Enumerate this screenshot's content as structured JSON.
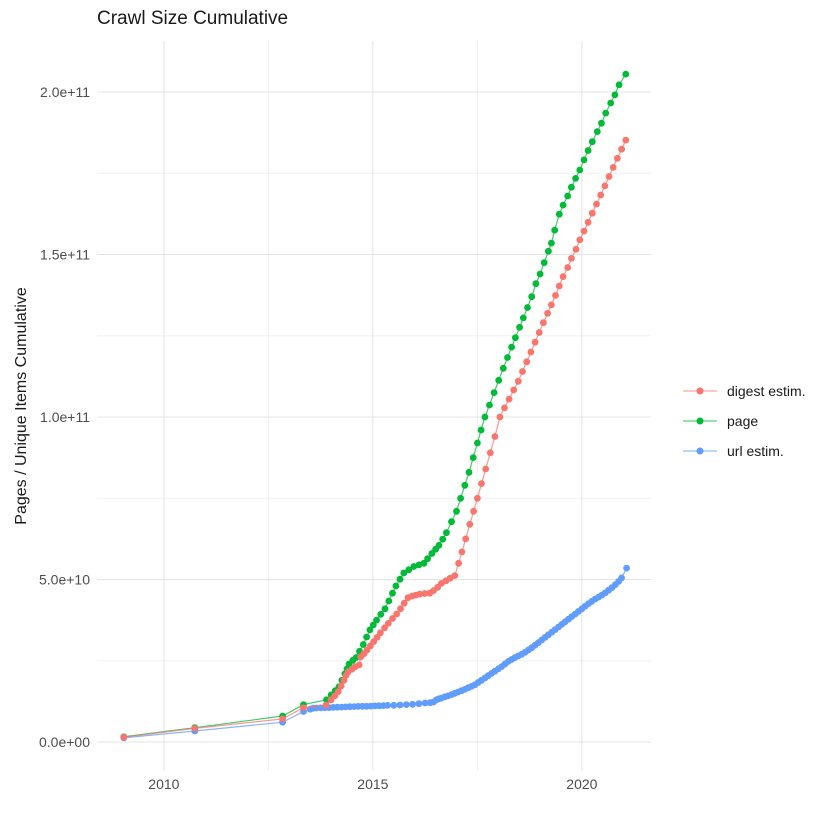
{
  "chart_data": {
    "type": "line",
    "title": "Crawl Size Cumulative",
    "xlabel": "",
    "ylabel": "Pages / Unique Items Cumulative",
    "grid": "on",
    "legend_position": "right",
    "value_scale_note": "point values stored in billions (1e9) of pages / unique items",
    "x_axis": {
      "lim": [
        2008.4,
        2021.654
      ],
      "ticks": [
        {
          "v": 2010,
          "label": "2010"
        },
        {
          "v": 2015,
          "label": "2015"
        },
        {
          "v": 2020,
          "label": "2020"
        }
      ],
      "minor": [
        2012.5,
        2017.5
      ]
    },
    "y_axis": {
      "lim": [
        -8.92,
        215.69
      ],
      "ticks": [
        {
          "v": 0,
          "label": "0.0e+00"
        },
        {
          "v": 50,
          "label": "5.0e+10"
        },
        {
          "v": 100,
          "label": "1.0e+11"
        },
        {
          "v": 150,
          "label": "1.5e+11"
        },
        {
          "v": 200,
          "label": "2.0e+11"
        }
      ],
      "minor": [
        25,
        75,
        125,
        175
      ]
    },
    "colors": {
      "grid_major": "#e4e4e4",
      "grid_minor": "#f0f0f0",
      "tick_label": "#4d4d4d",
      "text": "#1a1a1a",
      "background": "#ffffff"
    },
    "series": [
      {
        "name": "digest estim.",
        "color": "#F8766D",
        "z": 3,
        "points": [
          [
            2009.04,
            1.5
          ],
          [
            2010.74,
            4.2
          ],
          [
            2012.84,
            7.1
          ],
          [
            2013.34,
            10.6
          ],
          [
            2013.88,
            11.4
          ],
          [
            2014.0,
            13.0
          ],
          [
            2014.09,
            14.2
          ],
          [
            2014.17,
            15.5
          ],
          [
            2014.24,
            17.2
          ],
          [
            2014.31,
            19.0
          ],
          [
            2014.36,
            20.5
          ],
          [
            2014.41,
            21.6
          ],
          [
            2014.5,
            22.4
          ],
          [
            2014.58,
            23.2
          ],
          [
            2014.67,
            23.7
          ],
          [
            2014.71,
            26.2
          ],
          [
            2014.79,
            27.2
          ],
          [
            2014.86,
            28.3
          ],
          [
            2014.94,
            29.6
          ],
          [
            2015.02,
            30.9
          ],
          [
            2015.1,
            32.2
          ],
          [
            2015.18,
            33.6
          ],
          [
            2015.28,
            35.1
          ],
          [
            2015.37,
            36.5
          ],
          [
            2015.47,
            38.0
          ],
          [
            2015.57,
            39.4
          ],
          [
            2015.66,
            41.0
          ],
          [
            2015.75,
            42.7
          ],
          [
            2015.84,
            44.4
          ],
          [
            2015.94,
            44.9
          ],
          [
            2016.03,
            45.2
          ],
          [
            2016.12,
            45.5
          ],
          [
            2016.24,
            45.7
          ],
          [
            2016.36,
            45.8
          ],
          [
            2016.45,
            46.6
          ],
          [
            2016.55,
            47.6
          ],
          [
            2016.64,
            48.8
          ],
          [
            2016.75,
            49.6
          ],
          [
            2016.85,
            50.4
          ],
          [
            2016.96,
            51.2
          ],
          [
            2017.05,
            55.0
          ],
          [
            2017.13,
            58.5
          ],
          [
            2017.22,
            62.5
          ],
          [
            2017.32,
            67.0
          ],
          [
            2017.41,
            71.0
          ],
          [
            2017.5,
            75.0
          ],
          [
            2017.6,
            79.5
          ],
          [
            2017.7,
            84.0
          ],
          [
            2017.81,
            89.0
          ],
          [
            2017.92,
            94.0
          ],
          [
            2018.04,
            100.0
          ],
          [
            2018.15,
            102.8
          ],
          [
            2018.26,
            105.5
          ],
          [
            2018.37,
            108.3
          ],
          [
            2018.48,
            111.0
          ],
          [
            2018.58,
            114.0
          ],
          [
            2018.68,
            117.0
          ],
          [
            2018.78,
            120.0
          ],
          [
            2018.88,
            123.0
          ],
          [
            2018.98,
            126.0
          ],
          [
            2019.08,
            129.0
          ],
          [
            2019.18,
            131.9
          ],
          [
            2019.27,
            134.5
          ],
          [
            2019.37,
            137.4
          ],
          [
            2019.46,
            140.3
          ],
          [
            2019.55,
            143.2
          ],
          [
            2019.66,
            146.0
          ],
          [
            2019.75,
            148.8
          ],
          [
            2019.86,
            151.6
          ],
          [
            2019.95,
            154.5
          ],
          [
            2020.05,
            157.2
          ],
          [
            2020.15,
            159.9
          ],
          [
            2020.25,
            162.7
          ],
          [
            2020.35,
            165.5
          ],
          [
            2020.45,
            168.3
          ],
          [
            2020.55,
            171.1
          ],
          [
            2020.65,
            174.0
          ],
          [
            2020.75,
            176.8
          ],
          [
            2020.85,
            179.6
          ],
          [
            2020.95,
            182.4
          ],
          [
            2021.05,
            185.2
          ]
        ]
      },
      {
        "name": "page",
        "color": "#00BA38",
        "z": 1,
        "points": [
          [
            2009.04,
            1.6
          ],
          [
            2010.74,
            4.4
          ],
          [
            2012.84,
            8.0
          ],
          [
            2013.34,
            11.5
          ],
          [
            2013.89,
            13.0
          ],
          [
            2014.0,
            14.5
          ],
          [
            2014.1,
            15.8
          ],
          [
            2014.19,
            17.0
          ],
          [
            2014.26,
            19.0
          ],
          [
            2014.33,
            21.0
          ],
          [
            2014.38,
            22.5
          ],
          [
            2014.43,
            24.0
          ],
          [
            2014.52,
            25.1
          ],
          [
            2014.6,
            26.0
          ],
          [
            2014.68,
            27.9
          ],
          [
            2014.77,
            30.0
          ],
          [
            2014.85,
            32.3
          ],
          [
            2014.93,
            34.5
          ],
          [
            2015.01,
            36.0
          ],
          [
            2015.09,
            37.5
          ],
          [
            2015.19,
            39.3
          ],
          [
            2015.29,
            41.0
          ],
          [
            2015.38,
            43.4
          ],
          [
            2015.47,
            45.8
          ],
          [
            2015.55,
            48.0
          ],
          [
            2015.65,
            50.1
          ],
          [
            2015.74,
            52.0
          ],
          [
            2015.86,
            53.0
          ],
          [
            2015.98,
            54.0
          ],
          [
            2016.1,
            54.5
          ],
          [
            2016.22,
            55.0
          ],
          [
            2016.31,
            56.4
          ],
          [
            2016.41,
            58.0
          ],
          [
            2016.5,
            59.3
          ],
          [
            2016.58,
            60.5
          ],
          [
            2016.67,
            62.4
          ],
          [
            2016.76,
            64.4
          ],
          [
            2016.88,
            67.8
          ],
          [
            2017.0,
            71.0
          ],
          [
            2017.1,
            75.0
          ],
          [
            2017.2,
            79.0
          ],
          [
            2017.3,
            83.0
          ],
          [
            2017.4,
            87.5
          ],
          [
            2017.5,
            92.0
          ],
          [
            2017.59,
            96.0
          ],
          [
            2017.68,
            100.0
          ],
          [
            2017.79,
            103.7
          ],
          [
            2017.9,
            107.5
          ],
          [
            2018.01,
            111.3
          ],
          [
            2018.12,
            115.0
          ],
          [
            2018.22,
            118.3
          ],
          [
            2018.32,
            121.5
          ],
          [
            2018.41,
            124.4
          ],
          [
            2018.51,
            127.6
          ],
          [
            2018.6,
            130.5
          ],
          [
            2018.7,
            133.7
          ],
          [
            2018.8,
            137.0
          ],
          [
            2018.9,
            141.0
          ],
          [
            2019.0,
            144.0
          ],
          [
            2019.1,
            147.5
          ],
          [
            2019.2,
            151.0
          ],
          [
            2019.27,
            153.5
          ],
          [
            2019.35,
            157.5
          ],
          [
            2019.46,
            162.4
          ],
          [
            2019.55,
            165.2
          ],
          [
            2019.66,
            168.0
          ],
          [
            2019.75,
            170.7
          ],
          [
            2019.85,
            173.4
          ],
          [
            2019.95,
            176.0
          ],
          [
            2020.05,
            179.1
          ],
          [
            2020.15,
            182.0
          ],
          [
            2020.25,
            184.7
          ],
          [
            2020.37,
            187.8
          ],
          [
            2020.47,
            190.4
          ],
          [
            2020.57,
            193.5
          ],
          [
            2020.69,
            196.6
          ],
          [
            2020.79,
            199.1
          ],
          [
            2020.89,
            202.2
          ],
          [
            2021.05,
            205.5
          ]
        ]
      },
      {
        "name": "url estim.",
        "color": "#619CFF",
        "z": 2,
        "points": [
          [
            2009.04,
            1.3
          ],
          [
            2010.74,
            3.4
          ],
          [
            2012.84,
            6.1
          ],
          [
            2013.34,
            9.4
          ],
          [
            2013.5,
            10.1
          ],
          [
            2013.57,
            10.4
          ],
          [
            2013.65,
            10.45
          ],
          [
            2013.75,
            10.5
          ],
          [
            2013.85,
            10.55
          ],
          [
            2013.95,
            10.6
          ],
          [
            2014.05,
            10.65
          ],
          [
            2014.15,
            10.7
          ],
          [
            2014.25,
            10.75
          ],
          [
            2014.35,
            10.8
          ],
          [
            2014.45,
            10.85
          ],
          [
            2014.55,
            10.9
          ],
          [
            2014.65,
            10.95
          ],
          [
            2014.75,
            11.0
          ],
          [
            2014.85,
            11.0
          ],
          [
            2014.95,
            11.05
          ],
          [
            2015.05,
            11.1
          ],
          [
            2015.15,
            11.15
          ],
          [
            2015.25,
            11.2
          ],
          [
            2015.35,
            11.25
          ],
          [
            2015.5,
            11.3
          ],
          [
            2015.65,
            11.4
          ],
          [
            2015.8,
            11.5
          ],
          [
            2015.95,
            11.6
          ],
          [
            2016.1,
            11.8
          ],
          [
            2016.25,
            12.0
          ],
          [
            2016.37,
            12.1
          ],
          [
            2016.45,
            12.3
          ],
          [
            2016.52,
            13.0
          ],
          [
            2016.58,
            13.3
          ],
          [
            2016.64,
            13.5
          ],
          [
            2016.72,
            13.9
          ],
          [
            2016.8,
            14.2
          ],
          [
            2016.88,
            14.6
          ],
          [
            2016.96,
            15.0
          ],
          [
            2017.04,
            15.4
          ],
          [
            2017.12,
            15.8
          ],
          [
            2017.2,
            16.2
          ],
          [
            2017.28,
            16.7
          ],
          [
            2017.36,
            17.1
          ],
          [
            2017.44,
            17.6
          ],
          [
            2017.52,
            18.3
          ],
          [
            2017.6,
            19.0
          ],
          [
            2017.68,
            19.7
          ],
          [
            2017.76,
            20.4
          ],
          [
            2017.84,
            21.1
          ],
          [
            2017.92,
            21.8
          ],
          [
            2018.0,
            22.5
          ],
          [
            2018.08,
            23.2
          ],
          [
            2018.16,
            24.0
          ],
          [
            2018.24,
            24.8
          ],
          [
            2018.32,
            25.4
          ],
          [
            2018.4,
            26.0
          ],
          [
            2018.48,
            26.5
          ],
          [
            2018.56,
            27.0
          ],
          [
            2018.64,
            27.6
          ],
          [
            2018.72,
            28.3
          ],
          [
            2018.8,
            29.0
          ],
          [
            2018.88,
            29.8
          ],
          [
            2018.96,
            30.6
          ],
          [
            2019.04,
            31.4
          ],
          [
            2019.12,
            32.2
          ],
          [
            2019.2,
            33.0
          ],
          [
            2019.28,
            33.8
          ],
          [
            2019.36,
            34.6
          ],
          [
            2019.44,
            35.4
          ],
          [
            2019.52,
            36.2
          ],
          [
            2019.6,
            37.0
          ],
          [
            2019.68,
            37.8
          ],
          [
            2019.76,
            38.6
          ],
          [
            2019.84,
            39.4
          ],
          [
            2019.92,
            40.2
          ],
          [
            2020.0,
            41.0
          ],
          [
            2020.08,
            41.8
          ],
          [
            2020.16,
            42.6
          ],
          [
            2020.24,
            43.3
          ],
          [
            2020.32,
            44.0
          ],
          [
            2020.4,
            44.6
          ],
          [
            2020.48,
            45.2
          ],
          [
            2020.56,
            45.9
          ],
          [
            2020.64,
            46.7
          ],
          [
            2020.72,
            47.5
          ],
          [
            2020.8,
            48.4
          ],
          [
            2020.88,
            49.4
          ],
          [
            2020.95,
            50.5
          ],
          [
            2021.07,
            53.5
          ]
        ]
      }
    ]
  }
}
